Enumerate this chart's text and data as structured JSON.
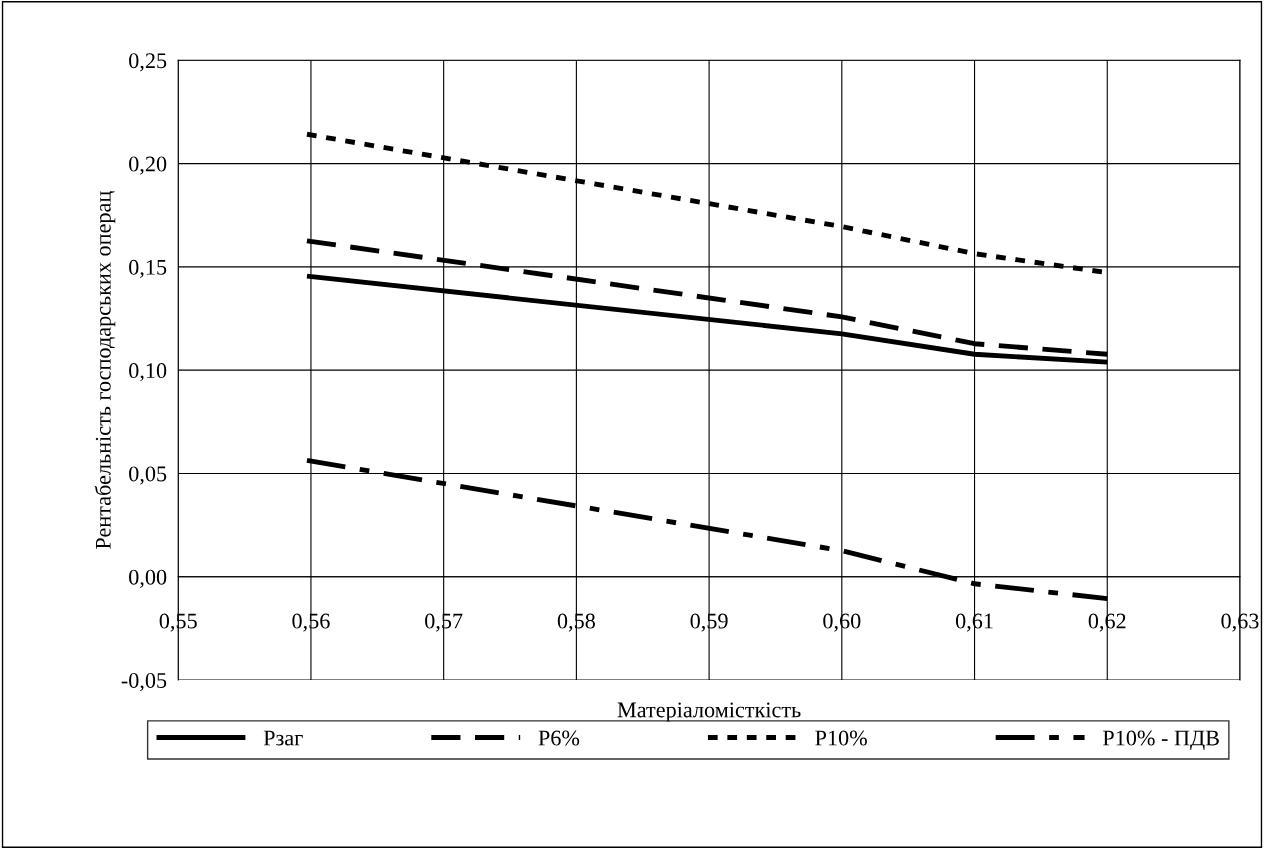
{
  "chart_data": {
    "type": "line",
    "xlabel": "Матеріаломісткість",
    "ylabel": "Рентабельність господарських операц",
    "xlim": [
      0.55,
      0.63
    ],
    "ylim": [
      -0.05,
      0.25
    ],
    "xticks": [
      {
        "value": 0.55,
        "label": "0,55"
      },
      {
        "value": 0.56,
        "label": "0,56"
      },
      {
        "value": 0.57,
        "label": "0,57"
      },
      {
        "value": 0.58,
        "label": "0,58"
      },
      {
        "value": 0.59,
        "label": "0,59"
      },
      {
        "value": 0.6,
        "label": "0,60"
      },
      {
        "value": 0.61,
        "label": "0,61"
      },
      {
        "value": 0.62,
        "label": "0,62"
      },
      {
        "value": 0.63,
        "label": "0,63"
      }
    ],
    "yticks": [
      {
        "value": -0.05,
        "label": "-0,05"
      },
      {
        "value": 0,
        "label": "0,00"
      },
      {
        "value": 0.05,
        "label": "0,05"
      },
      {
        "value": 0.1,
        "label": "0,10"
      },
      {
        "value": 0.15,
        "label": "0,15"
      },
      {
        "value": 0.2,
        "label": "0,20"
      },
      {
        "value": 0.25,
        "label": "0,25"
      }
    ],
    "grid": true,
    "legend": "bottom",
    "marker": "none",
    "series": [
      {
        "name": "Pзаг",
        "color": "#000000",
        "line_style": "solid",
        "x": [
          0.5597,
          0.6,
          0.61,
          0.62
        ],
        "values": [
          0.1455,
          0.1176,
          0.1077,
          0.1039
        ]
      },
      {
        "name": "P6%",
        "color": "#000000",
        "line_style": "dashed",
        "x": [
          0.5597,
          0.6,
          0.61,
          0.62
        ],
        "values": [
          0.1626,
          0.1258,
          0.1128,
          0.1077
        ]
      },
      {
        "name": "P10%",
        "color": "#000000",
        "line_style": "dotted",
        "x": [
          0.5597,
          0.6,
          0.61,
          0.62
        ],
        "values": [
          0.2142,
          0.1695,
          0.1564,
          0.1472
        ]
      },
      {
        "name": "P10% - ПДВ",
        "color": "#000000",
        "line_style": "dashdot",
        "x": [
          0.5597,
          0.6,
          0.61,
          0.62
        ],
        "values": [
          0.0563,
          0.0126,
          -0.0034,
          -0.0106
        ]
      }
    ]
  }
}
